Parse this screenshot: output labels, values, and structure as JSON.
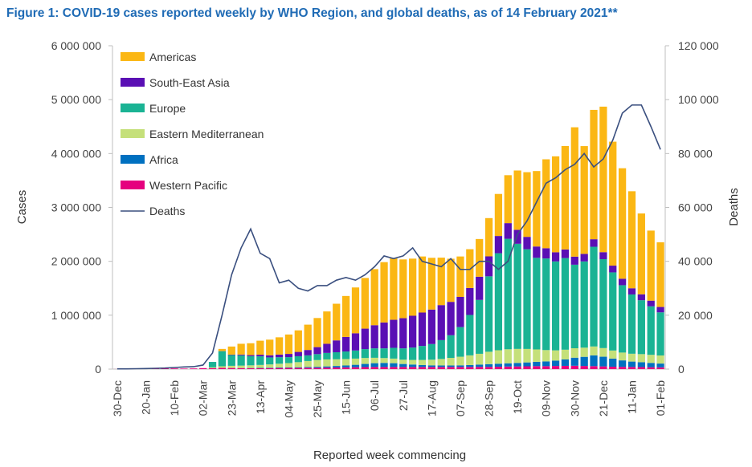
{
  "figure_title": "Figure 1: COVID-19 cases reported weekly by WHO Region, and global deaths, as of 14 February 2021**",
  "chart_data": {
    "type": "bar",
    "stacked": true,
    "xlabel": "Reported week commencing",
    "ylabel": "Cases",
    "y2label": "Deaths",
    "ylim": [
      0,
      6000000
    ],
    "y2lim": [
      0,
      120000
    ],
    "y_ticks": [
      "0",
      "1 000 000",
      "2 000 000",
      "3 000 000",
      "4 000 000",
      "5 000 000",
      "6 000 000"
    ],
    "y2_ticks": [
      "0",
      "20 000",
      "40 000",
      "60 000",
      "80 000",
      "100 000",
      "120 000"
    ],
    "x_tick_labels": [
      "30-Dec",
      "20-Jan",
      "10-Feb",
      "02-Mar",
      "23-Mar",
      "13-Apr",
      "04-May",
      "25-May",
      "15-Jun",
      "06-Jul",
      "27-Jul",
      "17-Aug",
      "07-Sep",
      "28-Sep",
      "19-Oct",
      "09-Nov",
      "30-Nov",
      "21-Dec",
      "11-Jan",
      "01-Feb"
    ],
    "grid": false,
    "legend_position": "top-left",
    "series": [
      {
        "name": "Western Pacific",
        "color": "#e5007e",
        "values": [
          1000,
          1500,
          2500,
          10000,
          16000,
          18000,
          12000,
          10000,
          12000,
          18000,
          18000,
          22000,
          20000,
          18000,
          15000,
          15000,
          18000,
          20000,
          22000,
          22000,
          25000,
          25000,
          28000,
          30000,
          32000,
          35000,
          38000,
          40000,
          40000,
          40000,
          40000,
          40000,
          40000,
          40000,
          40000,
          40000,
          40000,
          40000,
          42000,
          42000,
          45000,
          48000,
          50000,
          52000,
          55000,
          55000,
          58000,
          60000,
          62000,
          58000,
          55000,
          50000,
          45000,
          42000,
          40000,
          38000,
          35000,
          33000
        ]
      },
      {
        "name": "Africa",
        "color": "#0070c0",
        "values": [
          0,
          0,
          0,
          0,
          0,
          0,
          0,
          0,
          0,
          0,
          200,
          500,
          1000,
          2000,
          5000,
          7000,
          9000,
          10000,
          10000,
          12000,
          15000,
          18000,
          22000,
          28000,
          35000,
          45000,
          58000,
          70000,
          75000,
          70000,
          55000,
          45000,
          35000,
          30000,
          28000,
          28000,
          30000,
          35000,
          42000,
          50000,
          55000,
          60000,
          65000,
          72000,
          80000,
          88000,
          100000,
          120000,
          150000,
          170000,
          200000,
          180000,
          150000,
          120000,
          100000,
          90000,
          80000,
          70000
        ]
      },
      {
        "name": "Eastern Mediterranean",
        "color": "#c5e07a",
        "values": [
          0,
          0,
          0,
          0,
          0,
          0,
          0,
          0,
          0,
          0,
          15000,
          30000,
          40000,
          45000,
          50000,
          55000,
          60000,
          70000,
          80000,
          95000,
          110000,
          125000,
          130000,
          125000,
          120000,
          115000,
          110000,
          100000,
          90000,
          85000,
          80000,
          85000,
          95000,
          105000,
          120000,
          140000,
          160000,
          180000,
          200000,
          230000,
          250000,
          260000,
          260000,
          250000,
          230000,
          210000,
          190000,
          180000,
          175000,
          170000,
          165000,
          160000,
          150000,
          145000,
          145000,
          150000,
          150000,
          150000
        ]
      },
      {
        "name": "Europe",
        "color": "#1ab394",
        "values": [
          0,
          0,
          0,
          0,
          0,
          0,
          0,
          0,
          0,
          0,
          100000,
          280000,
          200000,
          190000,
          170000,
          160000,
          130000,
          120000,
          110000,
          110000,
          105000,
          110000,
          120000,
          130000,
          140000,
          150000,
          165000,
          175000,
          180000,
          200000,
          210000,
          230000,
          260000,
          290000,
          350000,
          420000,
          550000,
          750000,
          1000000,
          1400000,
          1800000,
          2050000,
          1950000,
          1850000,
          1700000,
          1700000,
          1650000,
          1700000,
          1550000,
          1600000,
          1850000,
          1650000,
          1450000,
          1250000,
          1100000,
          1000000,
          900000,
          800000
        ]
      },
      {
        "name": "South-East Asia",
        "color": "#5a0fb4",
        "values": [
          0,
          0,
          0,
          0,
          0,
          0,
          0,
          0,
          0,
          0,
          500,
          2000,
          8000,
          15000,
          20000,
          30000,
          40000,
          50000,
          60000,
          80000,
          100000,
          130000,
          170000,
          220000,
          270000,
          320000,
          380000,
          430000,
          480000,
          520000,
          560000,
          590000,
          620000,
          640000,
          650000,
          620000,
          560000,
          500000,
          430000,
          370000,
          320000,
          290000,
          260000,
          230000,
          210000,
          190000,
          170000,
          160000,
          150000,
          140000,
          140000,
          130000,
          125000,
          120000,
          115000,
          110000,
          105000,
          100000
        ]
      },
      {
        "name": "Americas",
        "color": "#fbb714",
        "values": [
          0,
          0,
          0,
          0,
          0,
          0,
          0,
          0,
          0,
          0,
          0,
          40000,
          150000,
          200000,
          220000,
          260000,
          290000,
          320000,
          360000,
          400000,
          470000,
          540000,
          600000,
          680000,
          760000,
          850000,
          940000,
          1040000,
          1120000,
          1150000,
          1090000,
          1060000,
          1040000,
          960000,
          880000,
          800000,
          750000,
          720000,
          700000,
          710000,
          780000,
          890000,
          1100000,
          1200000,
          1400000,
          1650000,
          1780000,
          1920000,
          2400000,
          2000000,
          2400000,
          2700000,
          2300000,
          2050000,
          1800000,
          1500000,
          1300000,
          1200000
        ]
      }
    ],
    "deaths": {
      "name": "Deaths",
      "color": "#3a4f7f",
      "values": [
        100,
        100,
        150,
        200,
        300,
        400,
        600,
        800,
        900,
        1500,
        6000,
        20000,
        35000,
        45000,
        52000,
        43000,
        41000,
        32000,
        33000,
        30000,
        29000,
        31000,
        31000,
        33000,
        34000,
        33000,
        35000,
        38000,
        42000,
        41000,
        42000,
        45000,
        40000,
        39000,
        38000,
        41000,
        37000,
        37000,
        40000,
        40000,
        37000,
        40000,
        50000,
        55000,
        62000,
        69000,
        71000,
        74000,
        76000,
        80000,
        75000,
        78000,
        85000,
        95000,
        98000,
        98000,
        90000,
        81500
      ]
    }
  }
}
